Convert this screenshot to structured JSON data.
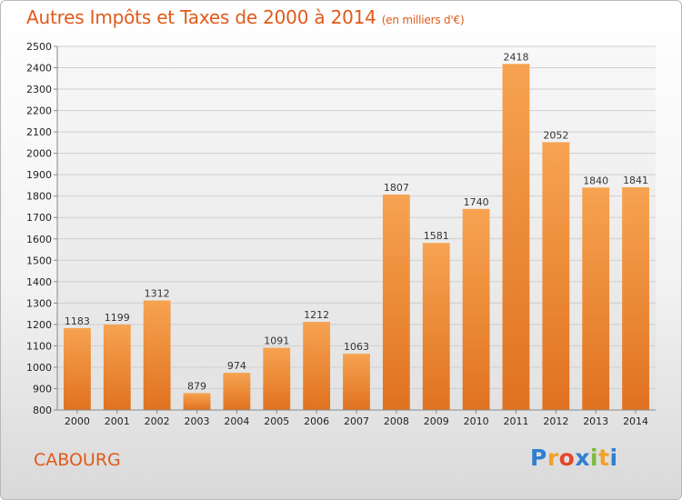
{
  "title": "Autres Impôts et Taxes de 2000 à 2014",
  "subtitle": "(en milliers d'€)",
  "city": "CABOURG",
  "logo": "Proxiti",
  "colors": {
    "bar_top": "#f6a351",
    "bar_bottom": "#e07220",
    "title": "#e05a1a",
    "grid": "#cfcfcf"
  },
  "chart_data": {
    "type": "bar",
    "title": "Autres Impôts et Taxes de 2000 à 2014",
    "subtitle": "(en milliers d'€)",
    "xlabel": "",
    "ylabel": "",
    "categories": [
      "2000",
      "2001",
      "2002",
      "2003",
      "2004",
      "2005",
      "2006",
      "2007",
      "2008",
      "2009",
      "2010",
      "2011",
      "2012",
      "2013",
      "2014"
    ],
    "values": [
      1183,
      1199,
      1312,
      879,
      974,
      1091,
      1212,
      1063,
      1807,
      1581,
      1740,
      2418,
      2052,
      1840,
      1841
    ],
    "ylim": [
      800,
      2500
    ],
    "ytick_step": 100,
    "grid": true,
    "legend": "none"
  }
}
